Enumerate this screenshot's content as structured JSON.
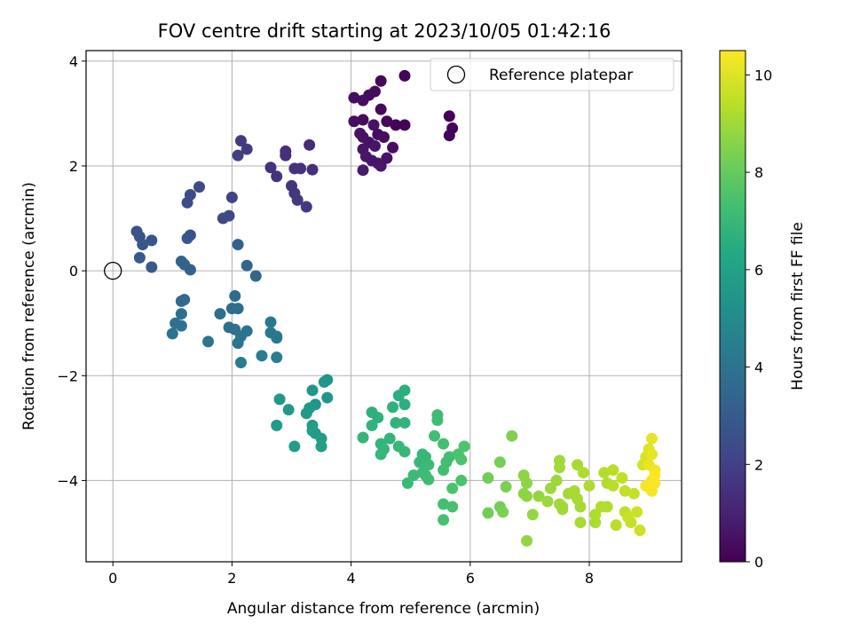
{
  "chart_data": {
    "type": "scatter",
    "title": "FOV centre drift starting at 2023/10/05 01:42:16",
    "xlabel": "Angular distance from reference (arcmin)",
    "ylabel": "Rotation from reference (arcmin)",
    "xlim": [
      -0.45,
      9.55
    ],
    "ylim": [
      -5.55,
      4.2
    ],
    "xticks": [
      0,
      2,
      4,
      6,
      8
    ],
    "yticks": [
      -4,
      -2,
      0,
      2,
      4
    ],
    "grid": true,
    "legend": {
      "location": "top-right",
      "entries": [
        {
          "label": "Reference platepar",
          "marker": "open-circle"
        }
      ]
    },
    "reference": {
      "x": 0,
      "y": 0
    },
    "colorbar": {
      "label": "Hours from first FF file",
      "range": [
        0,
        10.5
      ],
      "ticks": [
        0,
        2,
        4,
        6,
        8,
        10
      ],
      "colormap": "viridis"
    },
    "points": [
      [
        4.9,
        3.72,
        0.1
      ],
      [
        4.5,
        3.62,
        0.2
      ],
      [
        4.4,
        3.42,
        0.3
      ],
      [
        4.3,
        3.35,
        0.3
      ],
      [
        4.05,
        3.3,
        0.4
      ],
      [
        4.2,
        3.25,
        0.4
      ],
      [
        4.5,
        3.08,
        0.2
      ],
      [
        4.2,
        2.88,
        0.3
      ],
      [
        4.05,
        2.85,
        0.4
      ],
      [
        4.6,
        2.85,
        0.2
      ],
      [
        4.75,
        2.78,
        0.1
      ],
      [
        4.9,
        2.78,
        0.1
      ],
      [
        4.38,
        2.78,
        0.5
      ],
      [
        4.15,
        2.62,
        0.6
      ],
      [
        4.2,
        2.55,
        0.5
      ],
      [
        4.45,
        2.6,
        0.3
      ],
      [
        4.55,
        2.55,
        0.4
      ],
      [
        4.3,
        2.45,
        0.5
      ],
      [
        4.4,
        2.38,
        0.6
      ],
      [
        4.2,
        2.32,
        0.6
      ],
      [
        4.7,
        2.35,
        0.4
      ],
      [
        4.25,
        2.18,
        0.7
      ],
      [
        4.35,
        2.1,
        0.6
      ],
      [
        4.45,
        2.05,
        0.6
      ],
      [
        4.5,
        2.0,
        0.7
      ],
      [
        4.2,
        1.92,
        0.8
      ],
      [
        4.6,
        2.15,
        0.5
      ],
      [
        5.65,
        2.95,
        0.05
      ],
      [
        5.7,
        2.72,
        0.05
      ],
      [
        5.65,
        2.58,
        0.1
      ],
      [
        3.3,
        2.4,
        1.3
      ],
      [
        2.9,
        2.28,
        1.4
      ],
      [
        2.9,
        2.2,
        1.4
      ],
      [
        2.15,
        2.48,
        1.8
      ],
      [
        2.25,
        2.32,
        1.8
      ],
      [
        2.1,
        2.2,
        1.9
      ],
      [
        2.65,
        1.97,
        1.5
      ],
      [
        3.05,
        1.95,
        1.5
      ],
      [
        3.15,
        1.95,
        1.5
      ],
      [
        3.35,
        1.93,
        1.4
      ],
      [
        2.75,
        1.8,
        1.5
      ],
      [
        3.0,
        1.62,
        1.6
      ],
      [
        3.05,
        1.48,
        1.6
      ],
      [
        3.1,
        1.35,
        1.7
      ],
      [
        3.25,
        1.22,
        1.7
      ],
      [
        1.45,
        1.6,
        2.3
      ],
      [
        1.3,
        1.45,
        2.4
      ],
      [
        1.25,
        1.3,
        2.4
      ],
      [
        2.0,
        1.4,
        2.1
      ],
      [
        1.85,
        1.0,
        2.3
      ],
      [
        1.95,
        1.05,
        2.3
      ],
      [
        0.4,
        0.75,
        2.7
      ],
      [
        0.45,
        0.65,
        2.7
      ],
      [
        0.5,
        0.5,
        2.8
      ],
      [
        0.65,
        0.58,
        2.8
      ],
      [
        0.45,
        0.25,
        2.9
      ],
      [
        0.65,
        0.07,
        3.0
      ],
      [
        1.3,
        0.68,
        2.7
      ],
      [
        1.25,
        0.62,
        2.8
      ],
      [
        1.15,
        0.18,
        3.3
      ],
      [
        1.2,
        0.12,
        3.3
      ],
      [
        1.3,
        0.02,
        3.3
      ],
      [
        2.1,
        0.5,
        3.2
      ],
      [
        2.25,
        0.1,
        3.4
      ],
      [
        2.4,
        -0.1,
        3.5
      ],
      [
        1.15,
        -0.58,
        3.6
      ],
      [
        1.2,
        -0.55,
        3.6
      ],
      [
        2.05,
        -0.48,
        3.6
      ],
      [
        2.0,
        -0.72,
        3.7
      ],
      [
        2.1,
        -0.72,
        3.8
      ],
      [
        1.8,
        -0.82,
        3.8
      ],
      [
        1.15,
        -0.82,
        3.8
      ],
      [
        1.05,
        -1.0,
        3.9
      ],
      [
        1.15,
        -1.05,
        3.9
      ],
      [
        1.0,
        -1.2,
        4.0
      ],
      [
        1.95,
        -1.08,
        3.9
      ],
      [
        2.05,
        -1.12,
        3.9
      ],
      [
        2.25,
        -1.15,
        4.0
      ],
      [
        2.15,
        -1.25,
        4.0
      ],
      [
        1.6,
        -1.35,
        4.1
      ],
      [
        2.1,
        -1.38,
        4.1
      ],
      [
        2.65,
        -0.98,
        4.2
      ],
      [
        2.65,
        -1.18,
        4.2
      ],
      [
        2.75,
        -1.25,
        4.3
      ],
      [
        2.75,
        -1.28,
        4.2
      ],
      [
        2.5,
        -1.62,
        4.4
      ],
      [
        2.15,
        -1.75,
        4.4
      ],
      [
        2.75,
        -1.65,
        4.4
      ],
      [
        3.6,
        -2.08,
        5.4
      ],
      [
        3.55,
        -2.12,
        5.4
      ],
      [
        3.6,
        -2.42,
        5.5
      ],
      [
        3.35,
        -2.28,
        5.5
      ],
      [
        3.4,
        -2.55,
        5.5
      ],
      [
        3.3,
        -2.62,
        5.6
      ],
      [
        3.25,
        -2.72,
        5.6
      ],
      [
        2.8,
        -2.45,
        5.6
      ],
      [
        2.95,
        -2.65,
        5.6
      ],
      [
        2.75,
        -2.95,
        5.7
      ],
      [
        3.35,
        -2.95,
        5.7
      ],
      [
        3.4,
        -3.1,
        5.7
      ],
      [
        3.35,
        -3.05,
        5.8
      ],
      [
        3.5,
        -3.2,
        5.8
      ],
      [
        3.05,
        -3.35,
        5.8
      ],
      [
        3.5,
        -3.35,
        5.9
      ],
      [
        4.9,
        -2.28,
        6.6
      ],
      [
        4.8,
        -2.38,
        6.6
      ],
      [
        4.9,
        -2.55,
        6.6
      ],
      [
        4.7,
        -2.6,
        6.7
      ],
      [
        4.35,
        -2.7,
        6.7
      ],
      [
        4.45,
        -2.8,
        6.7
      ],
      [
        4.75,
        -2.9,
        6.8
      ],
      [
        4.9,
        -2.9,
        6.8
      ],
      [
        4.35,
        -2.95,
        6.8
      ],
      [
        4.2,
        -3.18,
        6.9
      ],
      [
        4.65,
        -3.2,
        6.9
      ],
      [
        4.5,
        -3.3,
        6.9
      ],
      [
        4.55,
        -3.4,
        6.9
      ],
      [
        4.5,
        -3.5,
        7.0
      ],
      [
        4.8,
        -3.35,
        7.0
      ],
      [
        4.9,
        -3.45,
        7.0
      ],
      [
        4.95,
        -4.05,
        7.1
      ],
      [
        5.05,
        -3.9,
        7.1
      ],
      [
        5.15,
        -3.65,
        7.0
      ],
      [
        5.25,
        -3.55,
        7.0
      ],
      [
        5.2,
        -3.5,
        7.0
      ],
      [
        5.3,
        -3.7,
        7.1
      ],
      [
        5.2,
        -3.85,
        7.1
      ],
      [
        5.25,
        -3.9,
        7.2
      ],
      [
        5.3,
        -3.98,
        7.2
      ],
      [
        5.45,
        -2.75,
        7.2
      ],
      [
        5.45,
        -2.85,
        7.2
      ],
      [
        5.55,
        -3.3,
        7.3
      ],
      [
        5.4,
        -3.15,
        7.3
      ],
      [
        5.6,
        -3.65,
        7.3
      ],
      [
        5.65,
        -3.55,
        7.3
      ],
      [
        5.55,
        -3.8,
        7.3
      ],
      [
        5.55,
        -4.45,
        7.3
      ],
      [
        5.55,
        -4.75,
        7.4
      ],
      [
        5.7,
        -4.5,
        7.4
      ],
      [
        5.7,
        -4.15,
        7.5
      ],
      [
        5.8,
        -3.5,
        7.5
      ],
      [
        5.85,
        -3.6,
        7.5
      ],
      [
        5.9,
        -3.35,
        7.5
      ],
      [
        5.85,
        -4.0,
        7.5
      ],
      [
        6.3,
        -3.95,
        8.2
      ],
      [
        6.3,
        -4.62,
        8.2
      ],
      [
        6.5,
        -3.65,
        8.3
      ],
      [
        6.5,
        -4.5,
        8.3
      ],
      [
        6.55,
        -4.6,
        8.4
      ],
      [
        6.6,
        -4.12,
        8.4
      ],
      [
        6.7,
        -3.15,
        8.5
      ],
      [
        6.9,
        -3.9,
        8.7
      ],
      [
        6.95,
        -4.05,
        8.7
      ],
      [
        6.9,
        -4.25,
        8.7
      ],
      [
        6.95,
        -4.3,
        8.7
      ],
      [
        6.95,
        -5.15,
        8.8
      ],
      [
        7.05,
        -4.65,
        8.8
      ],
      [
        7.15,
        -4.3,
        8.8
      ],
      [
        7.3,
        -4.4,
        8.9
      ],
      [
        7.35,
        -4.15,
        8.9
      ],
      [
        7.45,
        -4.0,
        8.9
      ],
      [
        7.5,
        -3.62,
        9.0
      ],
      [
        7.5,
        -3.75,
        9.0
      ],
      [
        7.5,
        -4.45,
        9.0
      ],
      [
        7.55,
        -4.5,
        9.0
      ],
      [
        7.55,
        -4.55,
        9.0
      ],
      [
        7.65,
        -4.25,
        9.0
      ],
      [
        7.75,
        -4.2,
        9.1
      ],
      [
        7.8,
        -3.7,
        9.1
      ],
      [
        7.8,
        -4.35,
        9.1
      ],
      [
        7.85,
        -4.5,
        9.1
      ],
      [
        7.85,
        -4.8,
        9.1
      ],
      [
        7.9,
        -3.85,
        9.2
      ],
      [
        8.0,
        -4.1,
        9.2
      ],
      [
        8.1,
        -4.65,
        9.2
      ],
      [
        8.1,
        -4.8,
        9.2
      ],
      [
        8.2,
        -4.5,
        9.3
      ],
      [
        8.25,
        -3.85,
        9.3
      ],
      [
        8.3,
        -4.05,
        9.3
      ],
      [
        8.3,
        -4.5,
        9.3
      ],
      [
        8.4,
        -3.8,
        9.4
      ],
      [
        8.4,
        -4.1,
        9.4
      ],
      [
        8.45,
        -4.85,
        9.4
      ],
      [
        8.55,
        -3.95,
        9.5
      ],
      [
        8.6,
        -4.2,
        9.5
      ],
      [
        8.6,
        -4.6,
        9.5
      ],
      [
        8.65,
        -4.7,
        9.6
      ],
      [
        8.7,
        -4.8,
        9.6
      ],
      [
        8.75,
        -4.25,
        9.6
      ],
      [
        8.8,
        -4.6,
        9.7
      ],
      [
        8.85,
        -4.95,
        9.7
      ],
      [
        8.9,
        -3.7,
        9.8
      ],
      [
        8.95,
        -3.55,
        9.9
      ],
      [
        9.0,
        -3.4,
        10.0
      ],
      [
        9.05,
        -3.2,
        10.1
      ],
      [
        9.05,
        -3.5,
        10.1
      ],
      [
        9.0,
        -3.7,
        10.2
      ],
      [
        9.1,
        -3.8,
        10.3
      ],
      [
        9.05,
        -4.0,
        10.3
      ],
      [
        9.1,
        -4.05,
        10.4
      ],
      [
        9.05,
        -4.2,
        10.4
      ],
      [
        8.95,
        -4.1,
        10.4
      ],
      [
        9.1,
        -3.9,
        10.5
      ]
    ]
  }
}
